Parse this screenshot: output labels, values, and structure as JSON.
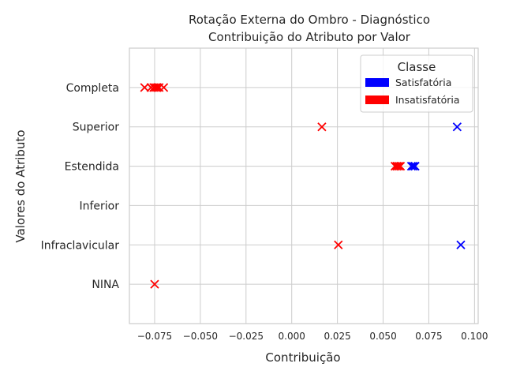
{
  "chart_data": {
    "type": "scatter",
    "title": "Rotação Externa do Ombro - Diagnóstico",
    "subtitle": "Contribuição do Atributo por Valor",
    "xlabel": "Contribuição",
    "ylabel": "Valores do Atributo",
    "xlim": [
      -0.0888,
      0.102
    ],
    "xticks": [
      -0.075,
      -0.05,
      -0.025,
      0.0,
      0.025,
      0.05,
      0.075,
      0.1
    ],
    "xtick_labels": [
      "−0.075",
      "−0.050",
      "−0.025",
      "0.000",
      "0.025",
      "0.050",
      "0.075",
      "0.100"
    ],
    "categories": [
      "Completa",
      "Superior",
      "Estendida",
      "Inferior",
      "Infraclavicular",
      "NINA"
    ],
    "grid": true,
    "legend_placement": "top-right",
    "legend": {
      "title": "Classe",
      "entries": [
        {
          "label": "Satisfatória",
          "color": "#0000ff"
        },
        {
          "label": "Insatisfatória",
          "color": "#ff0000"
        }
      ]
    },
    "marker": "x",
    "series": [
      {
        "name": "Satisfatória",
        "color": "#0000ff",
        "points": [
          {
            "category": "Superior",
            "x": 0.0905
          },
          {
            "category": "Estendida",
            "x": 0.0655
          },
          {
            "category": "Estendida",
            "x": 0.0665
          },
          {
            "category": "Estendida",
            "x": 0.0675
          },
          {
            "category": "Infraclavicular",
            "x": 0.0925
          }
        ]
      },
      {
        "name": "Insatisfatória",
        "color": "#ff0000",
        "points": [
          {
            "category": "Completa",
            "x": -0.0805
          },
          {
            "category": "Completa",
            "x": -0.077
          },
          {
            "category": "Completa",
            "x": -0.0755
          },
          {
            "category": "Completa",
            "x": -0.0745
          },
          {
            "category": "Completa",
            "x": -0.0735
          },
          {
            "category": "Completa",
            "x": -0.0725
          },
          {
            "category": "Completa",
            "x": -0.07
          },
          {
            "category": "Superior",
            "x": 0.0165
          },
          {
            "category": "Estendida",
            "x": 0.0565
          },
          {
            "category": "Estendida",
            "x": 0.0575
          },
          {
            "category": "Estendida",
            "x": 0.0585
          },
          {
            "category": "Estendida",
            "x": 0.0595
          },
          {
            "category": "Infraclavicular",
            "x": 0.0255
          },
          {
            "category": "NINA",
            "x": -0.075
          }
        ]
      }
    ]
  }
}
